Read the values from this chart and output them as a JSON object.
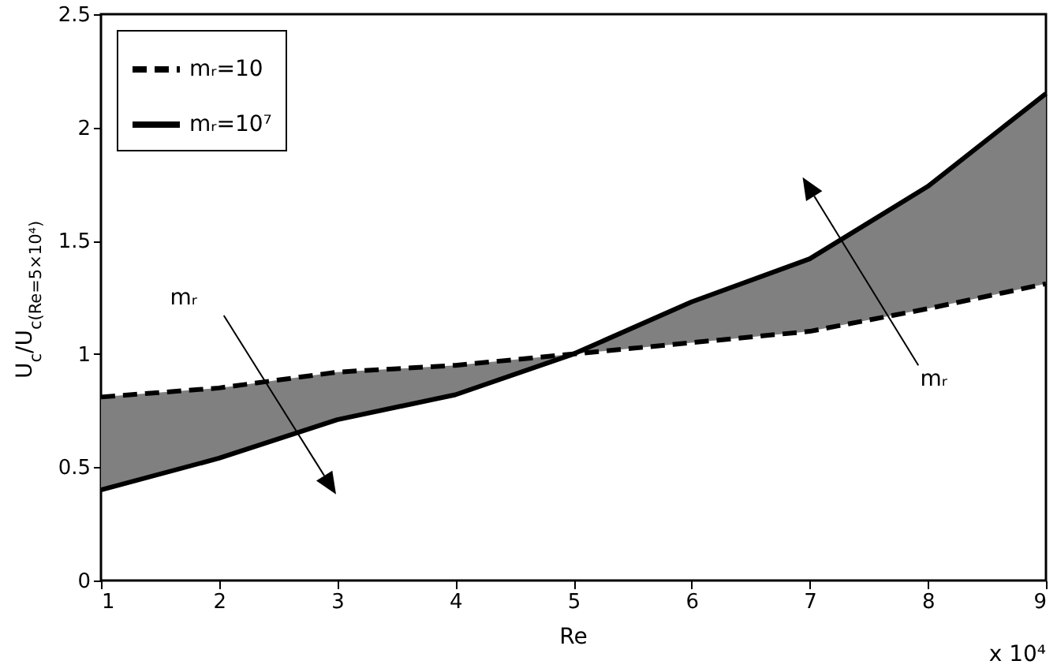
{
  "chart_data": {
    "type": "line",
    "xlabel": "Re",
    "ylabel": "U$_{c}$/U$_{c(Re=5×10⁴)}$",
    "x": [
      1,
      2,
      3,
      4,
      5,
      6,
      7,
      8,
      9
    ],
    "series": [
      {
        "name": "mᵣ=10",
        "color": "#000000",
        "line_style": "dashed",
        "values": [
          0.81,
          0.85,
          0.92,
          0.95,
          1.0,
          1.05,
          1.1,
          1.2,
          1.31
        ]
      },
      {
        "name": "mᵣ=10⁷",
        "color": "#000000",
        "line_style": "solid",
        "values": [
          0.4,
          0.54,
          0.71,
          0.82,
          1.0,
          1.23,
          1.42,
          1.74,
          2.15
        ],
        "lower": [
          0.4,
          0.54,
          0.71,
          0.82,
          1.0,
          1.05,
          1.1,
          1.2,
          1.31
        ],
        "upper": [
          0.81,
          0.85,
          0.92,
          0.95,
          1.0,
          1.23,
          1.42,
          1.74,
          2.15
        ]
      }
    ],
    "annotations": [
      "mᵣ",
      "mᵣ",
      "x 10⁴"
    ],
    "xlim": [
      1,
      9
    ],
    "xticks": [
      1,
      2,
      3,
      4,
      5,
      6,
      7,
      8,
      9
    ],
    "ylim": [
      0,
      2.5
    ],
    "yticks": [
      0,
      0.5,
      1,
      1.5,
      2,
      2.5
    ],
    "legend": "top left",
    "grid": false,
    "marker": "none"
  }
}
